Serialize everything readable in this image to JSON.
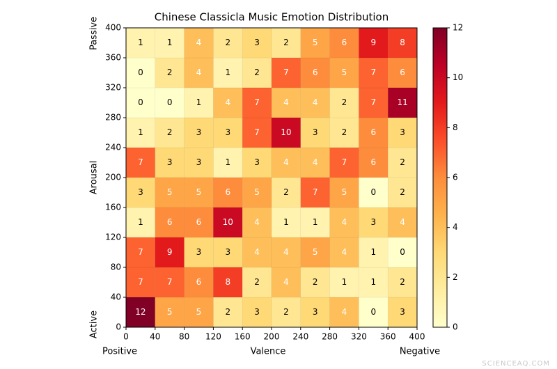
{
  "chart_data": {
    "type": "heatmap",
    "title": "Chinese Classicla Music Emotion Distribution",
    "x_label": "Valence",
    "y_label": "Arousal",
    "x_left_label": "Positive",
    "x_right_label": "Negative",
    "y_bottom_label": "Active",
    "y_top_label": "Passive",
    "x_bins": [
      0,
      40,
      80,
      120,
      160,
      200,
      240,
      280,
      320,
      360,
      400
    ],
    "y_bins": [
      0,
      40,
      80,
      120,
      160,
      200,
      240,
      280,
      320,
      360,
      400
    ],
    "xlim": [
      0,
      400
    ],
    "ylim": [
      0,
      400
    ],
    "xticks": [
      0,
      40,
      80,
      120,
      160,
      200,
      240,
      280,
      320,
      360,
      400
    ],
    "yticks": [
      0,
      40,
      80,
      120,
      160,
      200,
      240,
      280,
      320,
      360,
      400
    ],
    "z": [
      [
        12,
        5,
        5,
        2,
        3,
        2,
        3,
        4,
        0,
        3
      ],
      [
        7,
        7,
        6,
        8,
        2,
        4,
        2,
        1,
        1,
        2
      ],
      [
        7,
        9,
        3,
        3,
        4,
        4,
        5,
        4,
        1,
        0
      ],
      [
        1,
        6,
        6,
        10,
        4,
        1,
        1,
        4,
        3,
        4
      ],
      [
        3,
        5,
        5,
        6,
        5,
        2,
        7,
        5,
        0,
        2
      ],
      [
        7,
        3,
        3,
        1,
        3,
        4,
        4,
        7,
        6,
        2
      ],
      [
        1,
        2,
        3,
        3,
        7,
        10,
        3,
        2,
        6,
        3
      ],
      [
        0,
        0,
        1,
        4,
        7,
        4,
        4,
        2,
        7,
        11
      ],
      [
        0,
        2,
        4,
        1,
        2,
        7,
        6,
        5,
        7,
        6
      ],
      [
        1,
        1,
        4,
        2,
        3,
        2,
        5,
        6,
        9,
        8
      ]
    ],
    "zlim": [
      0,
      12
    ],
    "zticks": [
      0,
      2,
      4,
      6,
      8,
      10,
      12
    ],
    "colorscale": [
      "#ffffcc",
      "#ffeda0",
      "#fed976",
      "#feb24c",
      "#fd8d3c",
      "#fc4e2a",
      "#e31a1c",
      "#bd0026",
      "#800026"
    ],
    "watermark": "SCIENCEAQ.COM"
  }
}
